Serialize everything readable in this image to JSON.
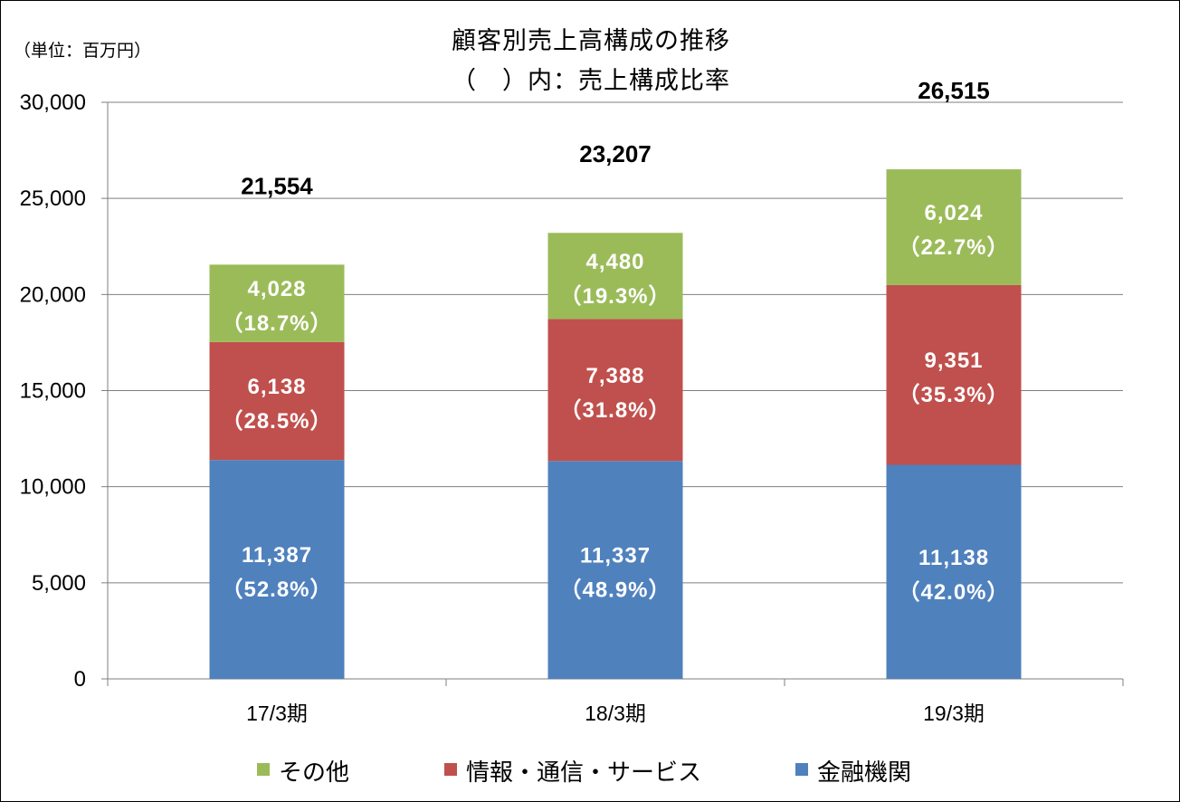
{
  "chart_data": {
    "type": "bar",
    "stacked": true,
    "title": "顧客別売上高構成の推移",
    "subtitle": "（　）内：売上構成比率",
    "unit_label": "（単位：百万円）",
    "xlabel": "",
    "ylabel": "",
    "ylim": [
      0,
      30000
    ],
    "yticks": [
      "0",
      "5,000",
      "10,000",
      "15,000",
      "20,000",
      "25,000",
      "30,000"
    ],
    "grid": true,
    "legend_position": "bottom",
    "categories": [
      "17/3期",
      "18/3期",
      "19/3期"
    ],
    "totals": [
      21554,
      23207,
      26515
    ],
    "total_labels": [
      "21,554",
      "23,207",
      "26,515"
    ],
    "series": [
      {
        "name": "金融機関",
        "color": "#4F81BD",
        "values": [
          11387,
          11337,
          11138
        ],
        "value_labels": [
          "11,387",
          "11,337",
          "11,138"
        ],
        "share_labels": [
          "（52.8%）",
          "（48.9%）",
          "（42.0%）"
        ]
      },
      {
        "name": "情報・通信・サービス",
        "color": "#C0504D",
        "values": [
          6138,
          7388,
          9351
        ],
        "value_labels": [
          "6,138",
          "7,388",
          "9,351"
        ],
        "share_labels": [
          "（28.5%）",
          "（31.8%）",
          "（35.3%）"
        ]
      },
      {
        "name": "その他",
        "color": "#9BBB59",
        "values": [
          4028,
          4480,
          6024
        ],
        "value_labels": [
          "4,028",
          "4,480",
          "6,024"
        ],
        "share_labels": [
          "（18.7%）",
          "（19.3%）",
          "（22.7%）"
        ]
      }
    ],
    "legend_order": [
      "その他",
      "情報・通信・サービス",
      "金融機関"
    ]
  }
}
